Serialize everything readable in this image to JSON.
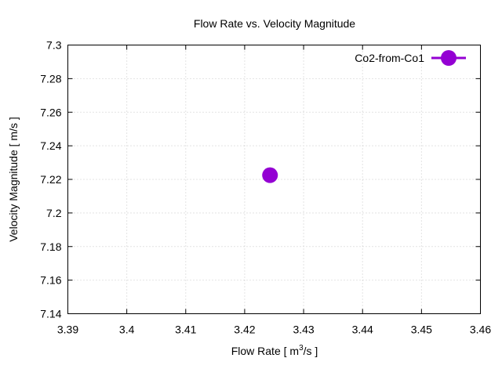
{
  "chart_data": {
    "type": "scatter",
    "title": "Flow Rate vs. Velocity Magnitude",
    "xlabel_main": "Flow Rate [ m",
    "xlabel_sup": "3",
    "xlabel_tail": "/s ]",
    "ylabel": "Velocity Magnitude [ m/s ]",
    "xlim": [
      3.39,
      3.46
    ],
    "ylim": [
      7.14,
      7.3
    ],
    "x_ticks": [
      3.39,
      3.4,
      3.41,
      3.42,
      3.43,
      3.44,
      3.45,
      3.46
    ],
    "x_tick_labels": [
      "3.39",
      "3.4",
      "3.41",
      "3.42",
      "3.43",
      "3.44",
      "3.45",
      "3.46"
    ],
    "y_ticks": [
      7.14,
      7.16,
      7.18,
      7.2,
      7.22,
      7.24,
      7.26,
      7.28,
      7.3
    ],
    "y_tick_labels": [
      "7.14",
      "7.16",
      "7.18",
      "7.2",
      "7.22",
      "7.24",
      "7.26",
      "7.28",
      "7.3"
    ],
    "grid": true,
    "legend_position": "top-right",
    "series": [
      {
        "name": "Co2-from-Co1",
        "color": "#9400d3",
        "x": [
          3.4243
        ],
        "y": [
          7.2225
        ]
      }
    ]
  }
}
